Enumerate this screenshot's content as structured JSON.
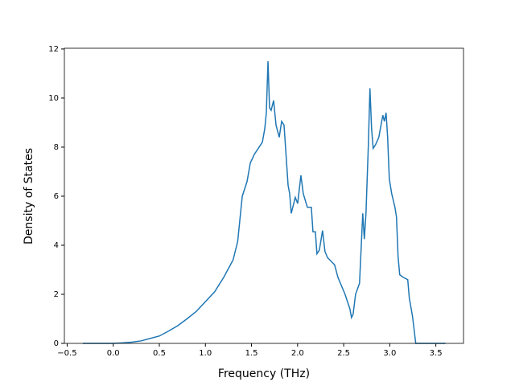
{
  "chart_data": {
    "type": "line",
    "x_label": "Frequency (THz)",
    "y_label": "Density of States",
    "x": [
      -0.33,
      0.0,
      0.1,
      0.2,
      0.3,
      0.4,
      0.5,
      0.6,
      0.7,
      0.8,
      0.9,
      1.0,
      1.1,
      1.2,
      1.3,
      1.35,
      1.4,
      1.452,
      1.487,
      1.53,
      1.618,
      1.644,
      1.661,
      1.679,
      1.696,
      1.713,
      1.74,
      1.766,
      1.801,
      1.827,
      1.853,
      1.897,
      1.914,
      1.931,
      1.975,
      2.001,
      2.036,
      2.062,
      2.106,
      2.149,
      2.167,
      2.193,
      2.21,
      2.236,
      2.271,
      2.297,
      2.324,
      2.402,
      2.437,
      2.515,
      2.568,
      2.585,
      2.603,
      2.629,
      2.672,
      2.707,
      2.724,
      2.742,
      2.768,
      2.785,
      2.803,
      2.82,
      2.846,
      2.881,
      2.925,
      2.942,
      2.96,
      2.977,
      2.995,
      3.021,
      3.056,
      3.073,
      3.09,
      3.108,
      3.143,
      3.195,
      3.212,
      3.247,
      3.282,
      3.605
    ],
    "series": [
      {
        "color": "#1f77b4",
        "values": [
          0,
          0,
          0.02,
          0.05,
          0.1,
          0.2,
          0.3,
          0.5,
          0.72,
          1.0,
          1.3,
          1.7,
          2.1,
          2.7,
          3.4,
          4.15,
          6.0,
          6.6,
          7.35,
          7.7,
          8.2,
          8.75,
          9.4,
          11.5,
          9.6,
          9.5,
          9.9,
          8.9,
          8.4,
          9.05,
          8.9,
          6.45,
          6.1,
          5.3,
          5.95,
          5.7,
          6.85,
          6.1,
          5.55,
          5.55,
          4.55,
          4.55,
          3.65,
          3.8,
          4.6,
          3.75,
          3.5,
          3.2,
          2.7,
          2.0,
          1.4,
          1.05,
          1.2,
          2.0,
          2.45,
          5.3,
          4.25,
          5.3,
          8.1,
          10.4,
          8.75,
          7.95,
          8.1,
          8.4,
          9.3,
          9.05,
          9.4,
          8.4,
          6.7,
          6.1,
          5.55,
          5.15,
          3.55,
          2.8,
          2.7,
          2.6,
          1.85,
          1.1,
          0,
          0
        ]
      }
    ],
    "xlim": [
      -0.53,
      3.8
    ],
    "ylim": [
      0,
      12.03
    ],
    "xticks": [
      {
        "value": -0.5,
        "label": "−0.5"
      },
      {
        "value": 0,
        "label": "0.0"
      },
      0.5,
      {
        "value": 1,
        "label": "1.0"
      },
      1.5,
      {
        "value": 2,
        "label": "2.0"
      },
      2.5,
      {
        "value": 3,
        "label": "3.0"
      },
      3.5
    ],
    "yticks": [
      0,
      2,
      4,
      6,
      8,
      10,
      12
    ]
  }
}
